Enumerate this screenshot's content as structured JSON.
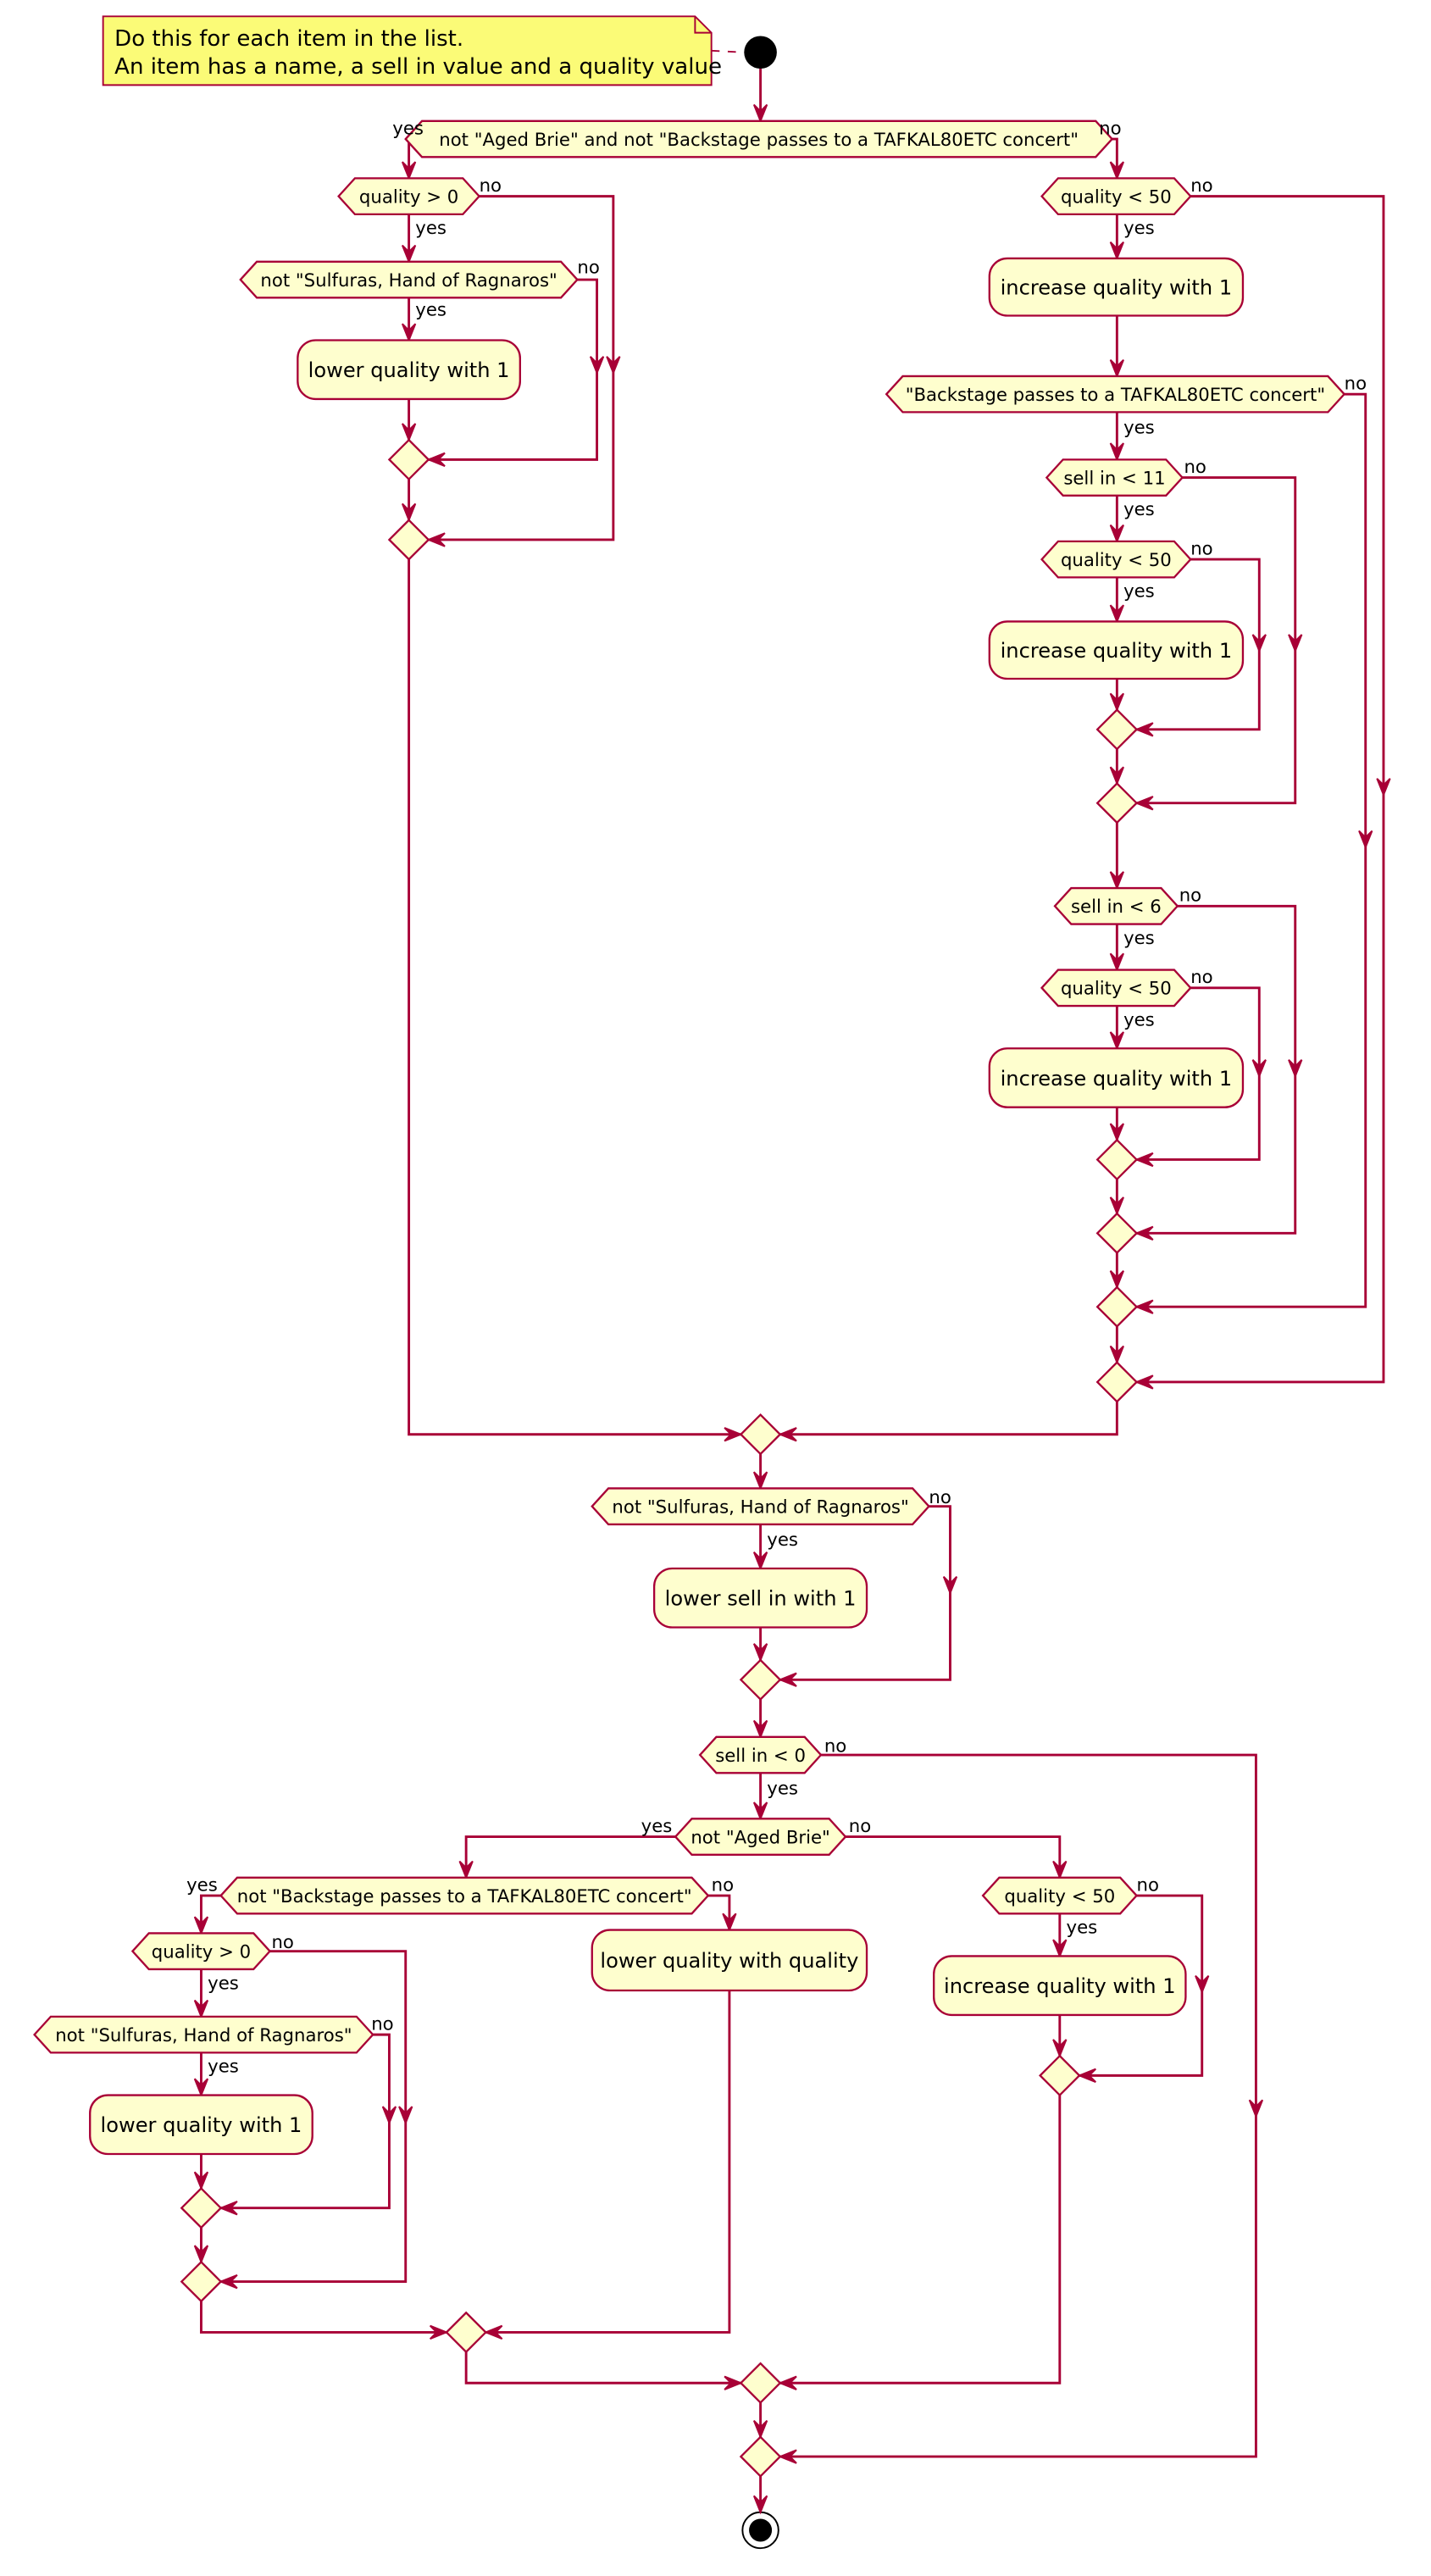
{
  "note": {
    "lines": [
      "Do this for each item in the list.",
      "An item has a name, a sell in value and a quality value"
    ]
  },
  "decisions": [
    {
      "label": "not \"Aged Brie\" and not \"Backstage passes to a TAFKAL80ETC concert\"",
      "yes": "yes",
      "no": "no"
    },
    {
      "label": "quality > 0",
      "yes": "yes",
      "no": "no"
    },
    {
      "label": "not \"Sulfuras, Hand of Ragnaros\"",
      "yes": "yes",
      "no": "no"
    },
    {
      "label": "quality < 50",
      "yes": "yes",
      "no": "no"
    },
    {
      "label": "\"Backstage passes to a TAFKAL80ETC concert\"",
      "yes": "yes",
      "no": "no"
    },
    {
      "label": "sell in < 11",
      "yes": "yes",
      "no": "no"
    },
    {
      "label": "quality < 50",
      "yes": "yes",
      "no": "no"
    },
    {
      "label": "sell in < 6",
      "yes": "yes",
      "no": "no"
    },
    {
      "label": "quality < 50",
      "yes": "yes",
      "no": "no"
    },
    {
      "label": "not \"Sulfuras, Hand of Ragnaros\"",
      "yes": "yes",
      "no": "no"
    },
    {
      "label": "sell in < 0",
      "yes": "yes",
      "no": "no"
    },
    {
      "label": "not \"Aged Brie\"",
      "yes": "yes",
      "no": "no"
    },
    {
      "label": "not \"Backstage passes to a TAFKAL80ETC concert\"",
      "yes": "yes",
      "no": "no"
    },
    {
      "label": "quality > 0",
      "yes": "yes",
      "no": "no"
    },
    {
      "label": "not \"Sulfuras, Hand of Ragnaros\"",
      "yes": "yes",
      "no": "no"
    },
    {
      "label": "quality < 50",
      "yes": "yes",
      "no": "no"
    }
  ],
  "activities": [
    "lower quality with 1",
    "increase quality with 1",
    "increase quality with 1",
    "increase quality with 1",
    "lower sell in with 1",
    "lower quality with 1",
    "lower quality with quality",
    "increase quality with 1"
  ]
}
